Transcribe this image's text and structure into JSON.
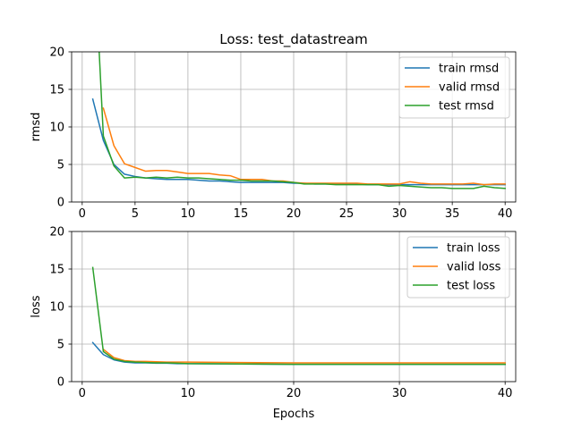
{
  "chart_data": [
    {
      "type": "line",
      "title": "Loss: test_datastream",
      "xlabel": "",
      "ylabel": "rmsd",
      "xlim": [
        -1,
        41
      ],
      "ylim": [
        0,
        20
      ],
      "xticks": [
        0,
        5,
        10,
        15,
        20,
        25,
        30,
        35,
        40
      ],
      "yticks": [
        0,
        5,
        10,
        15,
        20
      ],
      "grid": true,
      "legend": "top-right",
      "series": [
        {
          "name": "train rmsd",
          "color": "#1f77b4",
          "x": [
            1,
            2,
            3,
            4,
            5,
            6,
            7,
            8,
            9,
            10,
            11,
            12,
            13,
            14,
            15,
            16,
            17,
            18,
            19,
            20,
            21,
            22,
            23,
            24,
            25,
            26,
            27,
            28,
            29,
            30,
            31,
            32,
            33,
            34,
            35,
            36,
            37,
            38,
            39,
            40
          ],
          "y": [
            13.7,
            8.2,
            5.0,
            3.7,
            3.4,
            3.2,
            3.1,
            3.0,
            3.0,
            3.0,
            2.9,
            2.8,
            2.8,
            2.7,
            2.6,
            2.6,
            2.6,
            2.6,
            2.6,
            2.5,
            2.5,
            2.4,
            2.4,
            2.4,
            2.4,
            2.4,
            2.3,
            2.3,
            2.3,
            2.3,
            2.3,
            2.3,
            2.3,
            2.3,
            2.3,
            2.3,
            2.3,
            2.3,
            2.3,
            2.3
          ]
        },
        {
          "name": "valid rmsd",
          "color": "#ff7f0e",
          "x": [
            2,
            3,
            4,
            5,
            6,
            7,
            8,
            9,
            10,
            11,
            12,
            13,
            14,
            15,
            16,
            17,
            18,
            19,
            20,
            21,
            22,
            23,
            24,
            25,
            26,
            27,
            28,
            29,
            30,
            31,
            32,
            33,
            34,
            35,
            36,
            37,
            38,
            39,
            40
          ],
          "y": [
            12.5,
            7.5,
            5.1,
            4.6,
            4.1,
            4.2,
            4.2,
            4.0,
            3.8,
            3.8,
            3.8,
            3.6,
            3.5,
            3.0,
            3.0,
            3.0,
            2.8,
            2.8,
            2.6,
            2.5,
            2.5,
            2.5,
            2.5,
            2.5,
            2.5,
            2.4,
            2.4,
            2.4,
            2.4,
            2.7,
            2.5,
            2.4,
            2.4,
            2.4,
            2.4,
            2.5,
            2.3,
            2.4,
            2.4
          ]
        },
        {
          "name": "test rmsd",
          "color": "#2ca02c",
          "x": [
            1.6,
            2,
            3,
            4,
            5,
            6,
            7,
            8,
            9,
            10,
            11,
            12,
            13,
            14,
            15,
            16,
            17,
            18,
            19,
            20,
            21,
            22,
            23,
            24,
            25,
            26,
            27,
            28,
            29,
            30,
            31,
            32,
            33,
            34,
            35,
            36,
            37,
            38,
            39,
            40
          ],
          "y": [
            20.2,
            8.8,
            4.8,
            3.2,
            3.3,
            3.2,
            3.3,
            3.2,
            3.3,
            3.2,
            3.2,
            3.1,
            3.0,
            2.9,
            2.9,
            2.8,
            2.8,
            2.8,
            2.7,
            2.6,
            2.4,
            2.4,
            2.4,
            2.3,
            2.3,
            2.3,
            2.3,
            2.3,
            2.1,
            2.2,
            2.1,
            2.0,
            1.9,
            1.9,
            1.8,
            1.8,
            1.8,
            2.1,
            1.9,
            1.8
          ]
        }
      ]
    },
    {
      "type": "line",
      "title": "",
      "xlabel": "Epochs",
      "ylabel": "loss",
      "xlim": [
        -1,
        41
      ],
      "ylim": [
        0,
        20
      ],
      "xticks": [
        0,
        10,
        20,
        30,
        40
      ],
      "yticks": [
        0,
        5,
        10,
        15,
        20
      ],
      "grid": true,
      "legend": "top-right",
      "series": [
        {
          "name": "train loss",
          "color": "#1f77b4",
          "x": [
            1,
            2,
            3,
            4,
            5,
            6,
            7,
            8,
            9,
            10,
            15,
            20,
            25,
            30,
            35,
            40
          ],
          "y": [
            5.2,
            3.6,
            2.9,
            2.6,
            2.5,
            2.5,
            2.45,
            2.45,
            2.4,
            2.4,
            2.35,
            2.3,
            2.3,
            2.3,
            2.3,
            2.3
          ]
        },
        {
          "name": "valid loss",
          "color": "#ff7f0e",
          "x": [
            2,
            3,
            4,
            5,
            6,
            7,
            8,
            9,
            10,
            15,
            20,
            25,
            30,
            35,
            40
          ],
          "y": [
            4.3,
            3.2,
            2.8,
            2.7,
            2.7,
            2.65,
            2.6,
            2.6,
            2.6,
            2.55,
            2.5,
            2.5,
            2.5,
            2.5,
            2.5
          ]
        },
        {
          "name": "test loss",
          "color": "#2ca02c",
          "x": [
            1,
            2,
            3,
            4,
            5,
            6,
            7,
            8,
            9,
            10,
            15,
            20,
            25,
            30,
            35,
            40
          ],
          "y": [
            15.2,
            4.0,
            3.0,
            2.7,
            2.6,
            2.55,
            2.5,
            2.5,
            2.45,
            2.4,
            2.35,
            2.3,
            2.3,
            2.3,
            2.3,
            2.3
          ]
        }
      ]
    }
  ]
}
